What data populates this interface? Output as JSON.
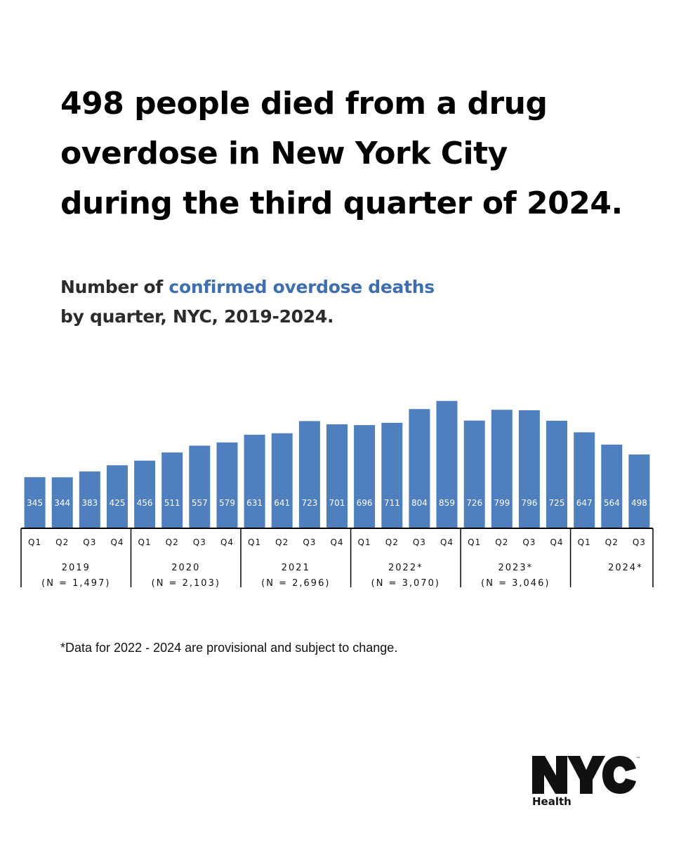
{
  "headline": {
    "lines": [
      "498 people died from a drug",
      "overdose in New York City",
      "during the third quarter of 2024."
    ]
  },
  "subtitle": {
    "prefix": "Number of ",
    "highlight": "confirmed overdose deaths",
    "line2": "by quarter, NYC, 2019-2024."
  },
  "footnote": "*Data for 2022 - 2024 are provisional and subject to change.",
  "logo": {
    "mark": "NYC",
    "tm": "™",
    "label": "Health"
  },
  "colors": {
    "bar": "#4f7fbf",
    "highlight": "#3f6fae"
  },
  "chart_data": {
    "type": "bar",
    "title": "Number of confirmed overdose deaths by quarter, NYC, 2019-2024.",
    "xlabel": "",
    "ylabel": "",
    "ylim": [
      0,
      900
    ],
    "grid": false,
    "legend": "none",
    "groups": [
      {
        "year": "2019",
        "total": "(N = 1,497)",
        "quarters": [
          "Q1",
          "Q2",
          "Q3",
          "Q4"
        ],
        "values": [
          345,
          344,
          383,
          425
        ]
      },
      {
        "year": "2020",
        "total": "(N = 2,103)",
        "quarters": [
          "Q1",
          "Q2",
          "Q3",
          "Q4"
        ],
        "values": [
          456,
          511,
          557,
          579
        ]
      },
      {
        "year": "2021",
        "total": "(N = 2,696)",
        "quarters": [
          "Q1",
          "Q2",
          "Q3",
          "Q4"
        ],
        "values": [
          631,
          641,
          723,
          701
        ]
      },
      {
        "year": "2022*",
        "total": "(N = 3,070)",
        "quarters": [
          "Q1",
          "Q2",
          "Q3",
          "Q4"
        ],
        "values": [
          696,
          711,
          804,
          859
        ]
      },
      {
        "year": "2023*",
        "total": "(N = 3,046)",
        "quarters": [
          "Q1",
          "Q2",
          "Q3",
          "Q4"
        ],
        "values": [
          726,
          799,
          796,
          725
        ]
      },
      {
        "year": "2024*",
        "total": "",
        "quarters": [
          "Q1",
          "Q2",
          "Q3"
        ],
        "values": [
          647,
          564,
          498
        ]
      }
    ]
  }
}
